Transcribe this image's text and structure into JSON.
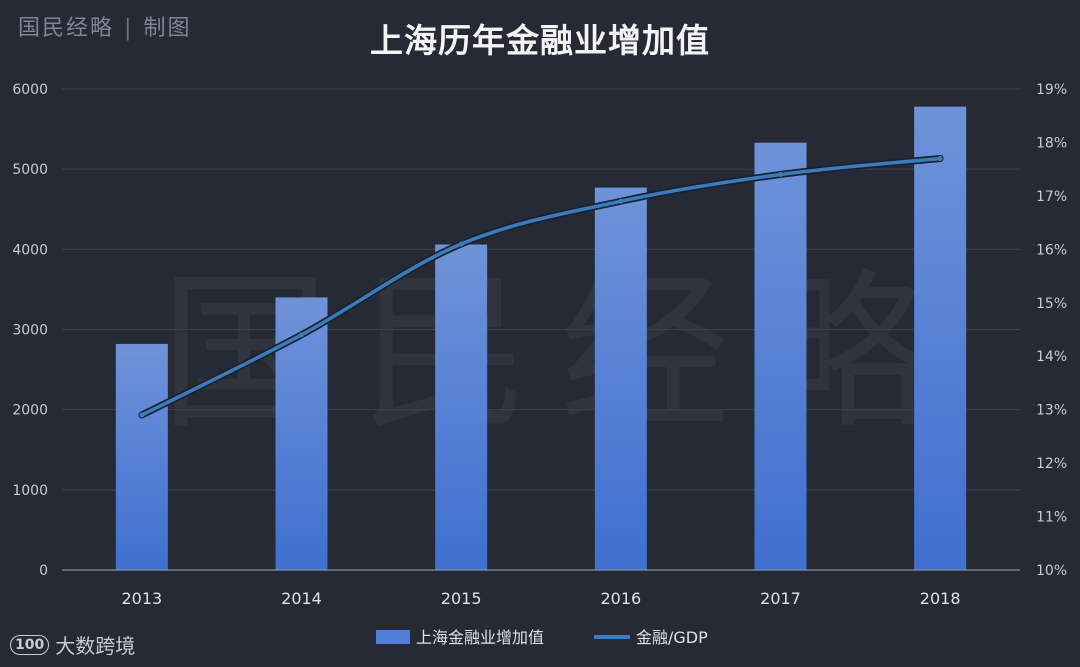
{
  "brand": {
    "name": "国民经略",
    "suffix": "制图"
  },
  "footer_logo": {
    "mark": "100",
    "text": "大数跨境"
  },
  "chart_data": {
    "type": "bar",
    "title": "上海历年金融业增加值",
    "watermark": "国民经略",
    "categories": [
      "2013",
      "2014",
      "2015",
      "2016",
      "2017",
      "2018"
    ],
    "series": [
      {
        "name": "上海金融业增加值",
        "type": "bar",
        "axis": "left",
        "color": "#4f7fd8",
        "values": [
          2820,
          3400,
          4060,
          4770,
          5330,
          5780
        ]
      },
      {
        "name": "金融/GDP",
        "type": "line",
        "axis": "right",
        "color": "#3b7dbc",
        "values": [
          12.9,
          14.4,
          16.1,
          16.9,
          17.4,
          17.7
        ]
      }
    ],
    "y_left": {
      "min": 0,
      "max": 6000,
      "ticks": [
        "0",
        "1000",
        "2000",
        "3000",
        "4000",
        "5000",
        "6000"
      ]
    },
    "y_right": {
      "min": 10,
      "max": 19,
      "ticks": [
        "10%",
        "11%",
        "12%",
        "13%",
        "14%",
        "15%",
        "16%",
        "17%",
        "18%",
        "19%"
      ]
    },
    "grid": true,
    "legend_position": "bottom"
  }
}
